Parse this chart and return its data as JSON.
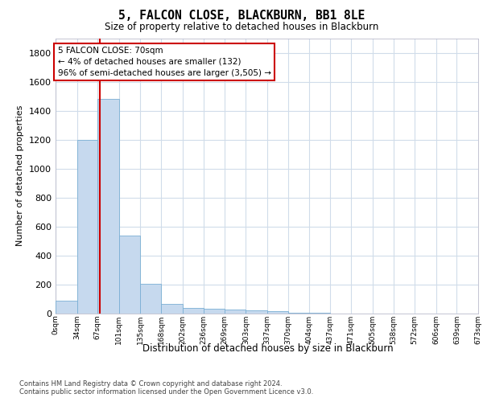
{
  "title": "5, FALCON CLOSE, BLACKBURN, BB1 8LE",
  "subtitle": "Size of property relative to detached houses in Blackburn",
  "xlabel": "Distribution of detached houses by size in Blackburn",
  "ylabel": "Number of detached properties",
  "bar_color": "#c6d9ee",
  "bar_edge_color": "#7aafd4",
  "background_color": "#ffffff",
  "grid_color": "#d0dcea",
  "annotation_text": "5 FALCON CLOSE: 70sqm\n← 4% of detached houses are smaller (132)\n96% of semi-detached houses are larger (3,505) →",
  "vline_x": 70,
  "vline_color": "#cc0000",
  "bins": [
    0,
    34,
    67,
    101,
    135,
    168,
    202,
    236,
    269,
    303,
    337,
    370,
    404,
    437,
    471,
    505,
    538,
    572,
    606,
    639,
    673
  ],
  "counts": [
    90,
    1200,
    1480,
    540,
    205,
    65,
    40,
    35,
    25,
    20,
    15,
    5,
    3,
    2,
    2,
    2,
    1,
    1,
    1,
    1
  ],
  "ylim": [
    0,
    1900
  ],
  "yticks": [
    0,
    200,
    400,
    600,
    800,
    1000,
    1200,
    1400,
    1600,
    1800
  ],
  "footnote1": "Contains HM Land Registry data © Crown copyright and database right 2024.",
  "footnote2": "Contains public sector information licensed under the Open Government Licence v3.0."
}
